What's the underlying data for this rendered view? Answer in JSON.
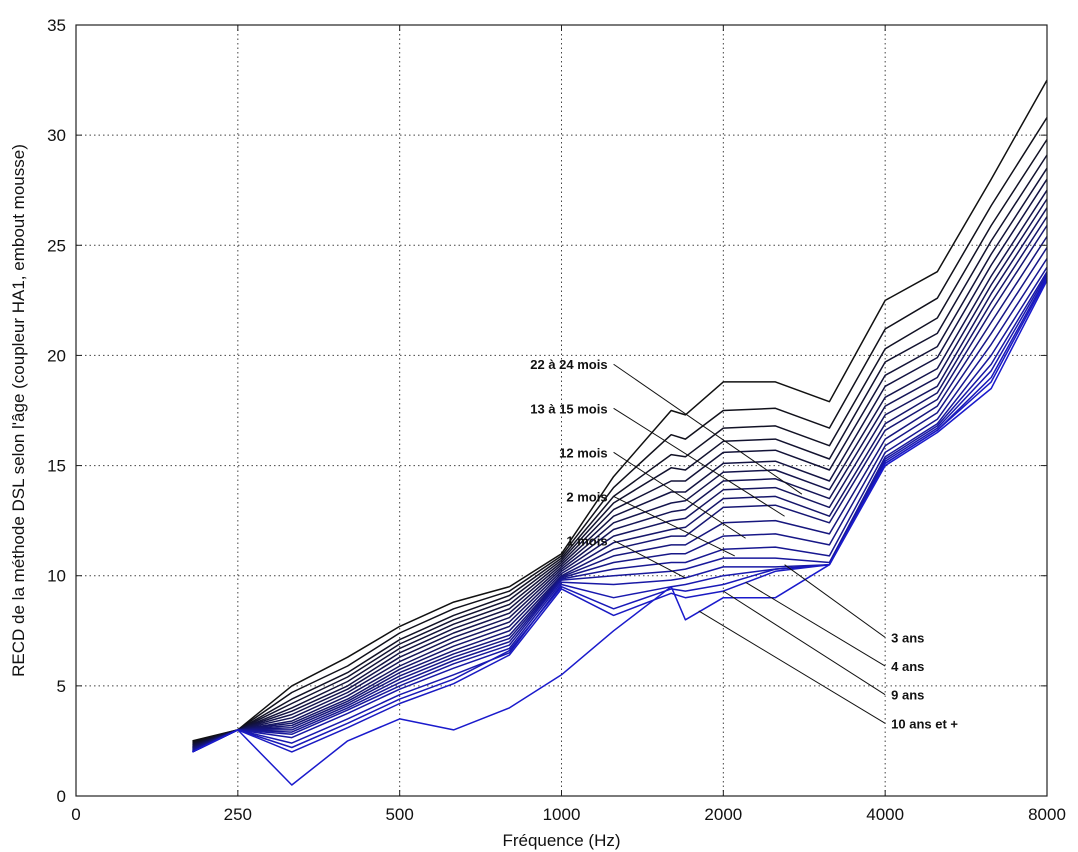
{
  "chart_data": {
    "type": "line",
    "xlabel": "Fréquence (Hz)",
    "ylabel": "RECD de la méthode DSL selon l'âge (coupleur HA1, embout mousse)",
    "x_ticks": [
      "0",
      "250",
      "500",
      "1000",
      "2000",
      "4000",
      "8000"
    ],
    "y_ticks": [
      "0",
      "5",
      "10",
      "15",
      "20",
      "25",
      "30",
      "35"
    ],
    "ylim": [
      0,
      35
    ],
    "grid": true,
    "x_scale": "octave",
    "x": [
      180,
      250,
      315,
      400,
      500,
      630,
      800,
      1000,
      1250,
      1600,
      1700,
      2000,
      2500,
      3150,
      4000,
      5000,
      6300,
      8000
    ],
    "colors": {
      "top": "#111111",
      "bottom": "#1a1acc"
    },
    "series": [
      {
        "values": [
          2.5,
          3.0,
          5.0,
          6.3,
          7.7,
          8.8,
          9.5,
          11.0,
          14.5,
          17.5,
          17.3,
          18.8,
          18.8,
          17.9,
          22.5,
          23.8,
          28.0,
          32.5
        ]
      },
      {
        "values": [
          2.45,
          3.0,
          4.7,
          5.9,
          7.4,
          8.5,
          9.3,
          10.9,
          14.0,
          16.4,
          16.2,
          17.5,
          17.6,
          16.7,
          21.2,
          22.6,
          26.8,
          30.8
        ]
      },
      {
        "values": [
          2.4,
          3.0,
          4.4,
          5.6,
          7.1,
          8.2,
          9.1,
          10.8,
          13.6,
          15.5,
          15.4,
          16.7,
          16.8,
          15.9,
          20.3,
          21.7,
          25.9,
          29.8
        ]
      },
      {
        "values": [
          2.35,
          3.0,
          4.2,
          5.4,
          6.9,
          8.0,
          8.9,
          10.7,
          13.3,
          14.9,
          14.8,
          16.1,
          16.2,
          15.3,
          19.7,
          21.0,
          25.2,
          29.1
        ]
      },
      {
        "values": [
          2.3,
          3.0,
          4.0,
          5.2,
          6.7,
          7.8,
          8.7,
          10.6,
          13.0,
          14.3,
          14.3,
          15.6,
          15.7,
          14.8,
          19.1,
          20.4,
          24.6,
          28.5
        ]
      },
      {
        "values": [
          2.3,
          3.0,
          3.85,
          5.0,
          6.5,
          7.6,
          8.5,
          10.5,
          12.7,
          13.8,
          13.8,
          15.1,
          15.2,
          14.3,
          18.6,
          19.9,
          24.1,
          28.0
        ]
      },
      {
        "values": [
          2.25,
          3.0,
          3.7,
          4.85,
          6.3,
          7.4,
          8.3,
          10.4,
          12.4,
          13.3,
          13.4,
          14.7,
          14.8,
          13.9,
          18.1,
          19.4,
          23.6,
          27.5
        ]
      },
      {
        "values": [
          2.2,
          3.0,
          3.55,
          4.7,
          6.1,
          7.2,
          8.1,
          10.3,
          12.1,
          12.9,
          13.0,
          14.3,
          14.4,
          13.5,
          17.7,
          19.0,
          23.2,
          27.1
        ]
      },
      {
        "values": [
          2.2,
          3.0,
          3.4,
          4.55,
          5.9,
          7.0,
          7.9,
          10.2,
          11.8,
          12.5,
          12.6,
          13.9,
          14.0,
          13.1,
          17.3,
          18.6,
          22.8,
          26.7
        ]
      },
      {
        "values": [
          2.15,
          3.0,
          3.3,
          4.4,
          5.75,
          6.8,
          7.7,
          10.1,
          11.5,
          12.1,
          12.2,
          13.5,
          13.6,
          12.7,
          16.9,
          18.3,
          22.4,
          26.3
        ]
      },
      {
        "values": [
          2.15,
          3.0,
          3.2,
          4.3,
          5.6,
          6.6,
          7.5,
          10.0,
          11.2,
          11.8,
          11.8,
          13.1,
          13.2,
          12.4,
          16.6,
          18.0,
          22.0,
          25.9
        ]
      },
      {
        "values": [
          2.1,
          3.0,
          3.1,
          4.2,
          5.45,
          6.45,
          7.3,
          9.95,
          10.9,
          11.4,
          11.4,
          12.4,
          12.5,
          11.9,
          16.2,
          17.7,
          21.5,
          25.4
        ]
      },
      {
        "values": [
          2.1,
          3.0,
          3.0,
          4.1,
          5.3,
          6.3,
          7.15,
          9.9,
          10.6,
          11.0,
          11.0,
          11.8,
          11.9,
          11.4,
          15.9,
          17.4,
          21.0,
          24.9
        ]
      },
      {
        "values": [
          2.05,
          3.0,
          2.9,
          4.0,
          5.15,
          6.15,
          7.0,
          9.85,
          10.3,
          10.6,
          10.6,
          11.2,
          11.3,
          10.9,
          15.6,
          17.1,
          20.5,
          24.4
        ]
      },
      {
        "values": [
          2.05,
          3.0,
          2.8,
          3.9,
          5.0,
          6.0,
          6.85,
          9.8,
          10.0,
          10.2,
          10.3,
          10.8,
          10.8,
          10.6,
          15.4,
          16.9,
          20.0,
          24.0
        ]
      },
      {
        "values": [
          2.0,
          3.0,
          2.65,
          3.75,
          4.85,
          5.8,
          6.7,
          9.7,
          9.6,
          9.8,
          9.9,
          10.4,
          10.4,
          10.5,
          15.3,
          16.8,
          19.6,
          23.8
        ]
      },
      {
        "values": [
          2.0,
          3.0,
          2.4,
          3.5,
          4.6,
          5.5,
          6.5,
          9.6,
          9.0,
          9.5,
          9.6,
          10.0,
          10.3,
          10.5,
          15.2,
          16.7,
          19.3,
          23.7
        ]
      },
      {
        "values": [
          2.0,
          3.0,
          2.2,
          3.3,
          4.4,
          5.3,
          6.6,
          9.5,
          8.5,
          9.4,
          9.3,
          9.6,
          10.3,
          10.5,
          15.1,
          16.6,
          19.0,
          23.6
        ]
      },
      {
        "values": [
          2.0,
          3.0,
          2.0,
          3.1,
          4.2,
          5.1,
          6.4,
          9.4,
          8.2,
          9.2,
          9.0,
          9.3,
          10.2,
          10.5,
          15.1,
          16.6,
          18.8,
          23.5
        ]
      },
      {
        "values": [
          2.0,
          3.0,
          0.5,
          2.5,
          3.5,
          3.0,
          4.0,
          5.5,
          7.5,
          9.5,
          8.0,
          9.0,
          9.0,
          10.5,
          15.0,
          16.5,
          18.5,
          23.4
        ]
      }
    ],
    "annotations": [
      {
        "text": "22 à 24 mois",
        "x": 1250,
        "y": 19.6,
        "side": "left",
        "to_x": 2800,
        "to_y": 13.7
      },
      {
        "text": "13 à 15 mois",
        "x": 1250,
        "y": 17.6,
        "side": "left",
        "to_x": 2600,
        "to_y": 12.7
      },
      {
        "text": "12 mois",
        "x": 1250,
        "y": 15.6,
        "side": "left",
        "to_x": 2200,
        "to_y": 11.7
      },
      {
        "text": "2 mois",
        "x": 1250,
        "y": 13.6,
        "side": "left",
        "to_x": 2100,
        "to_y": 10.9
      },
      {
        "text": "1 mois",
        "x": 1250,
        "y": 11.6,
        "side": "left",
        "to_x": 1700,
        "to_y": 9.9
      },
      {
        "text": "3 ans",
        "x": 4000,
        "y": 7.2,
        "side": "right",
        "to_x": 2600,
        "to_y": 10.5
      },
      {
        "text": "4 ans",
        "x": 4000,
        "y": 5.9,
        "side": "right",
        "to_x": 2200,
        "to_y": 9.7
      },
      {
        "text": "9 ans",
        "x": 4000,
        "y": 4.6,
        "side": "right",
        "to_x": 2000,
        "to_y": 9.3
      },
      {
        "text": "10 ans et +",
        "x": 4000,
        "y": 3.3,
        "side": "right",
        "to_x": 1800,
        "to_y": 8.4
      }
    ]
  }
}
